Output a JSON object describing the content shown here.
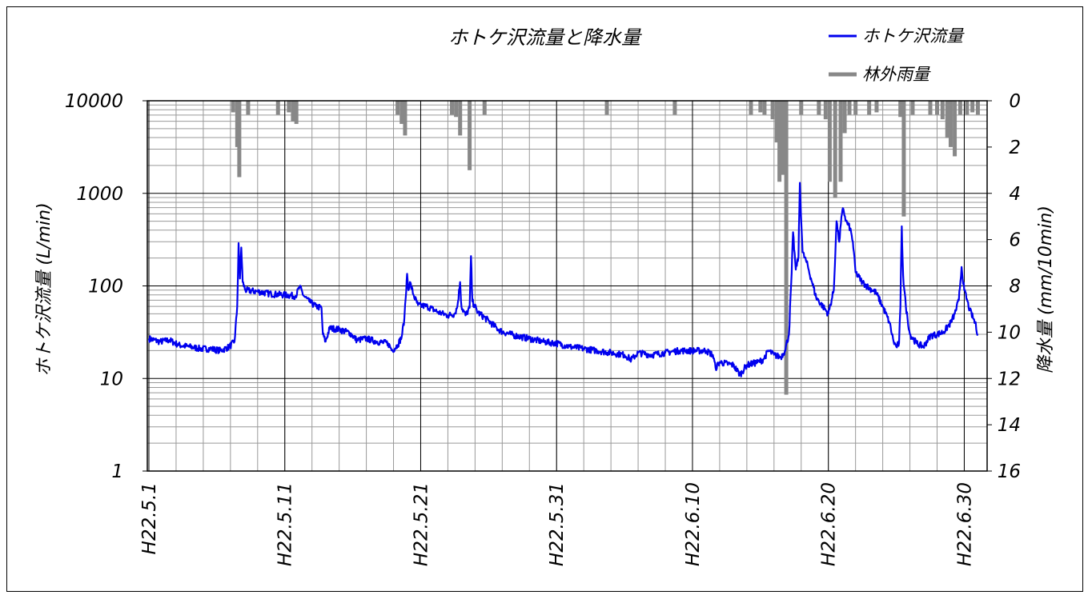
{
  "chart_data": {
    "type": "line",
    "title": "ホトケ沢流量と降水量",
    "ylabel": "ホトケ沢流量 (L/min)",
    "y2label": "降水量 (mm/10min)",
    "y_scale": "log",
    "ylim": [
      1,
      10000
    ],
    "y2lim": [
      16,
      0
    ],
    "y2_inverted": true,
    "grid": true,
    "legend_position": "top-right",
    "y_tick_labels": [
      "10000",
      "1000",
      "100",
      "10",
      "1"
    ],
    "y2_tick_labels": [
      "0",
      "2",
      "4",
      "6",
      "8",
      "10",
      "12",
      "14",
      "16"
    ],
    "x_tick_labels": [
      "H22.5.1",
      "H22.5.11",
      "H22.5.21",
      "H22.5.31",
      "H22.6.10",
      "H22.6.20",
      "H22.6.30"
    ],
    "x_range_days": [
      0,
      61
    ],
    "series": [
      {
        "name": "ホトケ沢流量",
        "color": "#0000ee",
        "axis": "left",
        "points": [
          [
            0,
            27
          ],
          [
            0.8,
            25
          ],
          [
            1.5,
            26
          ],
          [
            2.2,
            23
          ],
          [
            3.0,
            22
          ],
          [
            3.8,
            21
          ],
          [
            4.5,
            21
          ],
          [
            5.3,
            20
          ],
          [
            5.9,
            22
          ],
          [
            6.3,
            25
          ],
          [
            6.5,
            60
          ],
          [
            6.6,
            290
          ],
          [
            6.7,
            120
          ],
          [
            6.8,
            260
          ],
          [
            6.9,
            110
          ],
          [
            7.1,
            90
          ],
          [
            8.0,
            87
          ],
          [
            9.0,
            82
          ],
          [
            10.0,
            80
          ],
          [
            10.8,
            78
          ],
          [
            11.1,
            98
          ],
          [
            11.4,
            78
          ],
          [
            11.8,
            68
          ],
          [
            12.3,
            60
          ],
          [
            12.7,
            58
          ],
          [
            12.8,
            30
          ],
          [
            13.0,
            25
          ],
          [
            13.3,
            35
          ],
          [
            14.0,
            34
          ],
          [
            14.8,
            31
          ],
          [
            15.3,
            26
          ],
          [
            16.0,
            27
          ],
          [
            16.8,
            25
          ],
          [
            17.6,
            24
          ],
          [
            17.9,
            20
          ],
          [
            18.3,
            23
          ],
          [
            18.6,
            28
          ],
          [
            18.8,
            45
          ],
          [
            18.9,
            75
          ],
          [
            19.0,
            135
          ],
          [
            19.1,
            90
          ],
          [
            19.2,
            110
          ],
          [
            19.5,
            78
          ],
          [
            19.8,
            62
          ],
          [
            20.5,
            60
          ],
          [
            21.3,
            52
          ],
          [
            22.0,
            48
          ],
          [
            22.5,
            50
          ],
          [
            22.7,
            60
          ],
          [
            22.9,
            110
          ],
          [
            23.0,
            60
          ],
          [
            23.3,
            48
          ],
          [
            23.6,
            58
          ],
          [
            23.7,
            210
          ],
          [
            23.8,
            68
          ],
          [
            24.2,
            52
          ],
          [
            25.0,
            42
          ],
          [
            25.6,
            35
          ],
          [
            26.0,
            32
          ],
          [
            27.0,
            29
          ],
          [
            28.0,
            27
          ],
          [
            29.0,
            25
          ],
          [
            30.0,
            24
          ],
          [
            31.0,
            22
          ],
          [
            32.0,
            21
          ],
          [
            33.0,
            20
          ],
          [
            34.0,
            19
          ],
          [
            35.0,
            18
          ],
          [
            35.5,
            16
          ],
          [
            36.0,
            19
          ],
          [
            37.0,
            18
          ],
          [
            38.0,
            19
          ],
          [
            39.0,
            20
          ],
          [
            40.0,
            20
          ],
          [
            41.0,
            20
          ],
          [
            41.5,
            18
          ],
          [
            41.7,
            13
          ],
          [
            42.0,
            15
          ],
          [
            43.0,
            14
          ],
          [
            43.5,
            11
          ],
          [
            44.0,
            14
          ],
          [
            44.8,
            15
          ],
          [
            45.2,
            16
          ],
          [
            45.6,
            20
          ],
          [
            46.0,
            18
          ],
          [
            46.5,
            17
          ],
          [
            46.8,
            20
          ],
          [
            47.1,
            30
          ],
          [
            47.3,
            140
          ],
          [
            47.4,
            380
          ],
          [
            47.6,
            150
          ],
          [
            47.8,
            210
          ],
          [
            47.9,
            1300
          ],
          [
            48.1,
            230
          ],
          [
            48.4,
            180
          ],
          [
            48.8,
            110
          ],
          [
            49.1,
            75
          ],
          [
            49.6,
            60
          ],
          [
            50.0,
            50
          ],
          [
            50.4,
            90
          ],
          [
            50.6,
            500
          ],
          [
            50.8,
            300
          ],
          [
            51.0,
            600
          ],
          [
            51.1,
            680
          ],
          [
            51.3,
            500
          ],
          [
            51.6,
            420
          ],
          [
            51.8,
            300
          ],
          [
            52.0,
            140
          ],
          [
            52.5,
            110
          ],
          [
            53.0,
            95
          ],
          [
            53.5,
            85
          ],
          [
            54.0,
            60
          ],
          [
            54.5,
            40
          ],
          [
            54.8,
            25
          ],
          [
            55.0,
            22
          ],
          [
            55.2,
            24
          ],
          [
            55.3,
            60
          ],
          [
            55.4,
            440
          ],
          [
            55.5,
            130
          ],
          [
            55.7,
            60
          ],
          [
            56.0,
            30
          ],
          [
            56.5,
            24
          ],
          [
            57.0,
            22
          ],
          [
            57.5,
            29
          ],
          [
            58.0,
            30
          ],
          [
            58.5,
            32
          ],
          [
            59.0,
            40
          ],
          [
            59.3,
            50
          ],
          [
            59.6,
            70
          ],
          [
            59.8,
            160
          ],
          [
            60.0,
            90
          ],
          [
            60.4,
            55
          ],
          [
            60.8,
            40
          ],
          [
            61.0,
            30
          ]
        ]
      },
      {
        "name": "林外雨量",
        "color": "#888888",
        "axis": "right",
        "type": "bar",
        "points": [
          [
            6.2,
            0.5
          ],
          [
            6.5,
            2.0
          ],
          [
            6.65,
            3.3
          ],
          [
            7.3,
            0.6
          ],
          [
            9.5,
            0.6
          ],
          [
            10.3,
            0.5
          ],
          [
            10.6,
            0.9
          ],
          [
            10.85,
            1.0
          ],
          [
            18.3,
            0.6
          ],
          [
            18.6,
            1.0
          ],
          [
            18.85,
            1.5
          ],
          [
            22.3,
            0.6
          ],
          [
            22.6,
            0.7
          ],
          [
            22.9,
            1.5
          ],
          [
            23.6,
            3.0
          ],
          [
            24.7,
            0.6
          ],
          [
            33.7,
            0.6
          ],
          [
            38.7,
            0.6
          ],
          [
            44.3,
            0.6
          ],
          [
            45.0,
            0.5
          ],
          [
            45.3,
            0.6
          ],
          [
            45.9,
            0.8
          ],
          [
            46.2,
            1.8
          ],
          [
            46.4,
            3.5
          ],
          [
            46.65,
            3.2
          ],
          [
            46.9,
            12.7
          ],
          [
            48.0,
            0.6
          ],
          [
            49.3,
            0.6
          ],
          [
            49.8,
            0.8
          ],
          [
            50.1,
            3.5
          ],
          [
            50.5,
            4.2
          ],
          [
            50.9,
            3.5
          ],
          [
            51.2,
            1.4
          ],
          [
            51.55,
            0.6
          ],
          [
            52.0,
            0.6
          ],
          [
            53.0,
            0.6
          ],
          [
            53.55,
            0.5
          ],
          [
            55.3,
            0.7
          ],
          [
            55.55,
            5.0
          ],
          [
            56.2,
            0.6
          ],
          [
            57.5,
            0.6
          ],
          [
            58.0,
            0.6
          ],
          [
            58.4,
            0.8
          ],
          [
            58.75,
            1.6
          ],
          [
            59.0,
            2.0
          ],
          [
            59.3,
            2.4
          ],
          [
            59.7,
            0.6
          ],
          [
            60.2,
            0.6
          ],
          [
            60.6,
            0.5
          ],
          [
            61.0,
            0.6
          ]
        ]
      }
    ]
  }
}
